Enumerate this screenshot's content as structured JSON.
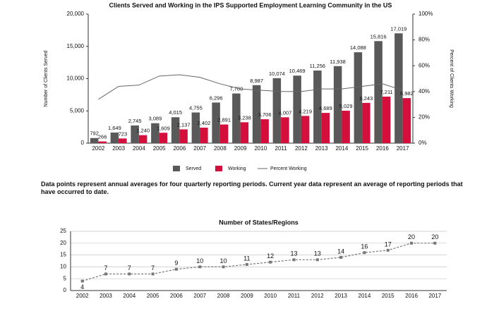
{
  "chart_data": [
    {
      "type": "bar",
      "title": "Clients Served and Working in the IPS Supported Employment Learning Community in the US",
      "y_label": "Number of Clients Served",
      "y2_label": "Percent of Clients Working",
      "categories": [
        "2002",
        "2003",
        "2004",
        "2005",
        "2006",
        "2007",
        "2008",
        "2009",
        "2010",
        "2011",
        "2012",
        "2013",
        "2014",
        "2015",
        "2016",
        "2017"
      ],
      "series": [
        {
          "name": "Served",
          "type": "bar",
          "color": "#595959",
          "values": [
            792,
            1649,
            2745,
            3089,
            4015,
            4755,
            6296,
            7700,
            8987,
            10074,
            10469,
            11256,
            11938,
            14088,
            15816,
            17019
          ],
          "value_labels": [
            "792",
            "1,649",
            "2,745",
            "3,089",
            "4,015",
            "4,755",
            "6,296",
            "7,700",
            "8,987",
            "10,074",
            "10,469",
            "11,256",
            "11,938",
            "14,088",
            "15,816",
            "17,019"
          ]
        },
        {
          "name": "Working",
          "type": "bar",
          "color": "#d40f3c",
          "values": [
            266,
            723,
            1240,
            1609,
            2137,
            2402,
            2891,
            3238,
            3706,
            4007,
            4219,
            4689,
            5029,
            6243,
            7211,
            6982
          ],
          "value_labels": [
            "266",
            "723",
            "1,240",
            "1,609",
            "2,137",
            "2,402",
            "2,891",
            "3,238",
            "3,706",
            "4,007",
            "4,219",
            "4,689",
            "5,029",
            "6,243",
            "7,211",
            "6,982"
          ]
        },
        {
          "name": "Percent Working",
          "type": "line",
          "axis": "y2",
          "color": "#666666",
          "values": [
            34,
            44,
            45,
            52,
            53,
            51,
            46,
            42,
            41,
            40,
            40,
            42,
            42,
            44,
            46,
            41
          ]
        }
      ],
      "ylim": [
        0,
        20000
      ],
      "yticks": [
        0,
        {
          "value": 5000,
          "label": "5,000"
        },
        {
          "value": 10000,
          "label": "10,000"
        },
        {
          "value": 15000,
          "label": "15,000"
        },
        {
          "value": 20000,
          "label": "20,000"
        }
      ],
      "y2lim": [
        0,
        100
      ],
      "y2ticks": [
        {
          "value": 0,
          "label": "0%"
        },
        {
          "value": 20,
          "label": "20%"
        },
        {
          "value": 40,
          "label": "40%"
        },
        {
          "value": 60,
          "label": "60%"
        },
        {
          "value": 80,
          "label": "80%"
        },
        {
          "value": 100,
          "label": "100%"
        }
      ],
      "legend": "bottom",
      "grid": false
    },
    {
      "type": "line",
      "title": "Number of States/Regions",
      "categories": [
        "2002",
        "2003",
        "2004",
        "2005",
        "2006",
        "2007",
        "2008",
        "2009",
        "2010",
        "2011",
        "2012",
        "2013",
        "2014",
        "2015",
        "2016",
        "2017"
      ],
      "values": [
        4,
        7,
        7,
        7,
        9,
        10,
        10,
        11,
        12,
        13,
        13,
        14,
        16,
        17,
        20,
        20
      ],
      "color": "#777777",
      "ylim": [
        0,
        25
      ],
      "yticks": [
        0,
        5,
        10,
        15,
        20,
        25
      ],
      "grid": true
    }
  ],
  "note": "Data points represent annual averages for four quarterly reporting periods. Current year data represent an average of reporting periods that have occurred to date."
}
